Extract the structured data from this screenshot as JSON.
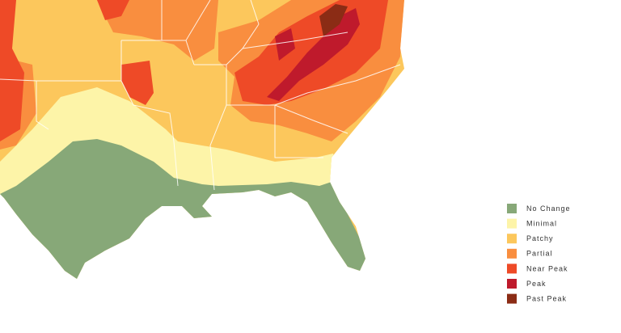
{
  "legend": {
    "items": [
      {
        "label": "No Change",
        "color": "#87a878"
      },
      {
        "label": "Minimal",
        "color": "#fdf4a8"
      },
      {
        "label": "Patchy",
        "color": "#fcc75c"
      },
      {
        "label": "Partial",
        "color": "#f98e3f"
      },
      {
        "label": "Near Peak",
        "color": "#ee4a27"
      },
      {
        "label": "Peak",
        "color": "#bf1a2c"
      },
      {
        "label": "Past Peak",
        "color": "#8b2c15"
      }
    ]
  }
}
